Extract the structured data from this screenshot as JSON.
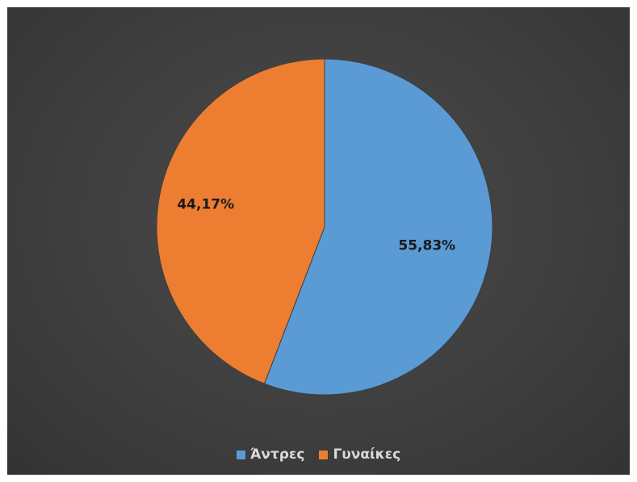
{
  "chart_data": {
    "type": "pie",
    "categories": [
      "Άντρες",
      "Γυναίκες"
    ],
    "values": [
      55.83,
      44.17
    ],
    "data_labels": [
      "55,83%",
      "44,17%"
    ],
    "colors": [
      "#5b9bd5",
      "#ed7d31"
    ],
    "start_angle_deg": 0,
    "direction": "clockwise",
    "legend_position": "bottom",
    "title": ""
  }
}
